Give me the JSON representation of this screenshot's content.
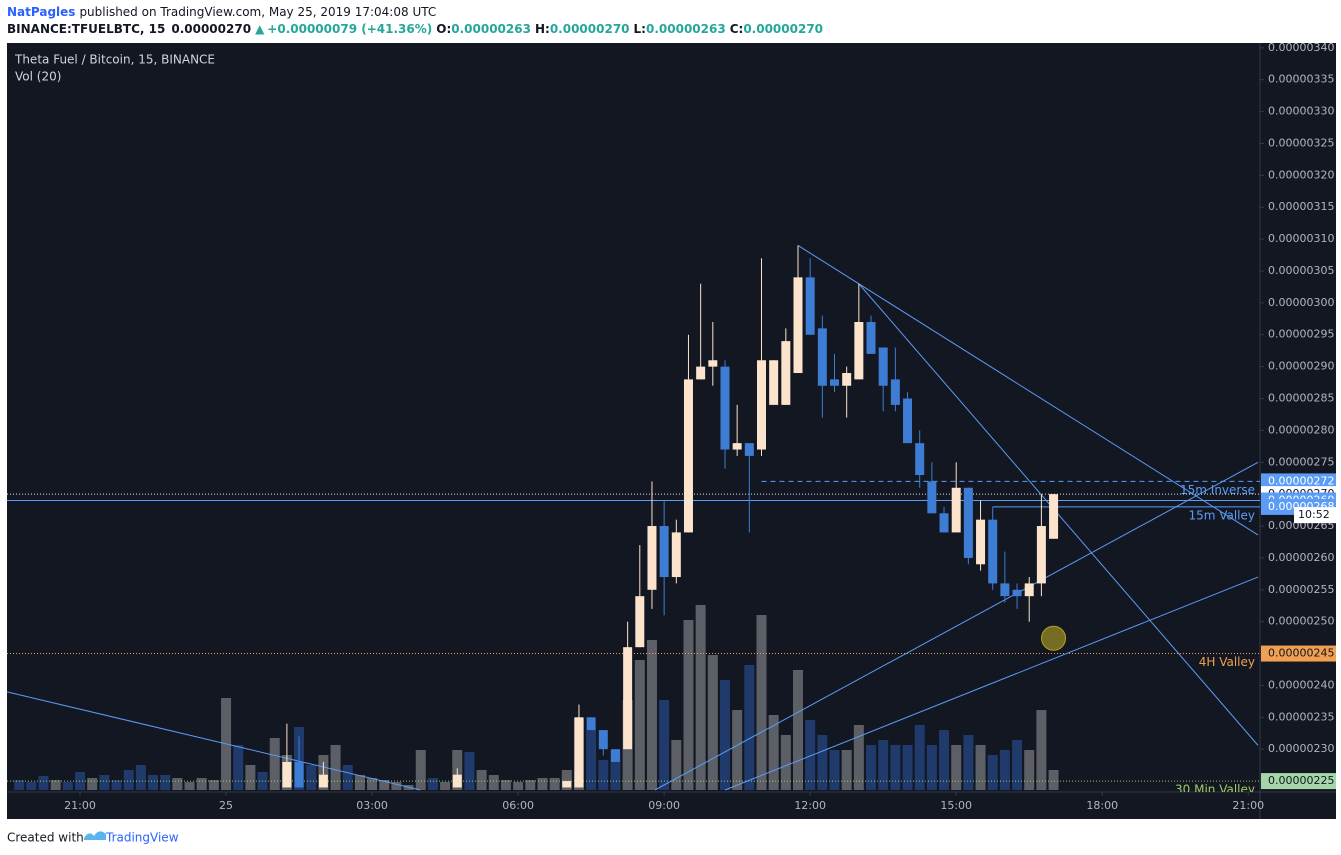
{
  "header": {
    "author": "NatPagles",
    "published": "published on TradingView.com, May 25, 2019 17:04:08 UTC",
    "symbol": "BINANCE:TFUELBTC, 15",
    "price": "0.00000270",
    "arrow": "▲",
    "change": "+0.00000079 (+41.36%)",
    "ohlc": [
      {
        "k": "O:",
        "v": "0.00000263"
      },
      {
        "k": "H:",
        "v": "0.00000270"
      },
      {
        "k": "L:",
        "v": "0.00000263"
      },
      {
        "k": "C:",
        "v": "0.00000270"
      }
    ]
  },
  "footer": {
    "created": "Created with",
    "brand": "TradingView"
  },
  "chart_data": {
    "type": "candlestick",
    "title": "Theta Fuel / Bitcoin, 15, BINANCE",
    "volume_label": "Vol (20)",
    "xlim": [
      -4.5,
      21.2
    ],
    "xticks": [
      {
        "value": -3,
        "label": "21:00"
      },
      {
        "value": 0,
        "label": "25"
      },
      {
        "value": 3,
        "label": "03:00"
      },
      {
        "value": 6,
        "label": "06:00"
      },
      {
        "value": 9,
        "label": "09:00"
      },
      {
        "value": 12,
        "label": "12:00"
      },
      {
        "value": 15,
        "label": "15:00"
      },
      {
        "value": 18,
        "label": "18:00"
      },
      {
        "value": 21,
        "label": "21:00"
      }
    ],
    "ylim": [
      2.236e-06,
      3.406e-06
    ],
    "yticks": [
      {
        "value": 2.3e-06,
        "label": "0.00000230"
      },
      {
        "value": 2.35e-06,
        "label": "0.00000235"
      },
      {
        "value": 2.4e-06,
        "label": "0.00000240"
      },
      {
        "value": 2.45e-06,
        "label": "0.00000245"
      },
      {
        "value": 2.5e-06,
        "label": "0.00000250"
      },
      {
        "value": 2.55e-06,
        "label": "0.00000255"
      },
      {
        "value": 2.6e-06,
        "label": "0.00000260"
      },
      {
        "value": 2.65e-06,
        "label": "0.00000265"
      },
      {
        "value": 2.7e-06,
        "label": "0.00000270"
      },
      {
        "value": 2.75e-06,
        "label": "0.00000275"
      },
      {
        "value": 2.8e-06,
        "label": "0.00000280"
      },
      {
        "value": 2.85e-06,
        "label": "0.00000285"
      },
      {
        "value": 2.9e-06,
        "label": "0.00000290"
      },
      {
        "value": 2.95e-06,
        "label": "0.00000295"
      },
      {
        "value": 3e-06,
        "label": "0.00000300"
      },
      {
        "value": 3.05e-06,
        "label": "0.00000305"
      },
      {
        "value": 3.1e-06,
        "label": "0.00000310"
      },
      {
        "value": 3.15e-06,
        "label": "0.00000315"
      },
      {
        "value": 3.2e-06,
        "label": "0.00000320"
      },
      {
        "value": 3.25e-06,
        "label": "0.00000325"
      },
      {
        "value": 3.3e-06,
        "label": "0.00000330"
      },
      {
        "value": 3.35e-06,
        "label": "0.00000335"
      },
      {
        "value": 3.4e-06,
        "label": "0.00000340"
      }
    ],
    "vlim": [
      0,
      200
    ],
    "up_color": "#fbe3cc",
    "down_color": "#3d7dd4",
    "up_volume_color": "#5d5f66",
    "down_volume_color": "#1f3a6b",
    "x": [
      1.25,
      1.5,
      2.0,
      4.75,
      7.0,
      7.25,
      7.5,
      7.75,
      8.0,
      8.25,
      8.5,
      8.75,
      9.0,
      9.25,
      9.5,
      9.75,
      10.0,
      10.25,
      10.5,
      10.75,
      11.0,
      11.25,
      11.5,
      11.75,
      12.0,
      12.25,
      12.5,
      12.75,
      13.0,
      13.25,
      13.5,
      13.75,
      14.0,
      14.25,
      14.5,
      14.75,
      15.0,
      15.25,
      15.5,
      15.75,
      16.0,
      16.25,
      16.5,
      16.75,
      17.0
    ],
    "open": [
      2.24e-06,
      2.28e-06,
      2.24e-06,
      2.24e-06,
      2.24e-06,
      2.24e-06,
      2.35e-06,
      2.33e-06,
      2.3e-06,
      2.3e-06,
      2.46e-06,
      2.55e-06,
      2.65e-06,
      2.57e-06,
      2.64e-06,
      2.88e-06,
      2.9e-06,
      2.9e-06,
      2.77e-06,
      2.78e-06,
      2.77e-06,
      2.84e-06,
      2.84e-06,
      2.89e-06,
      3.04e-06,
      2.96e-06,
      2.88e-06,
      2.87e-06,
      2.88e-06,
      2.97e-06,
      2.93e-06,
      2.88e-06,
      2.85e-06,
      2.78e-06,
      2.72e-06,
      2.67e-06,
      2.64e-06,
      2.71e-06,
      2.59e-06,
      2.66e-06,
      2.56e-06,
      2.55e-06,
      2.54e-06,
      2.56e-06,
      2.63e-06
    ],
    "high": [
      2.34e-06,
      2.32e-06,
      2.28e-06,
      2.27e-06,
      2.25e-06,
      2.37e-06,
      2.35e-06,
      2.33e-06,
      2.3e-06,
      2.5e-06,
      2.62e-06,
      2.72e-06,
      2.69e-06,
      2.66e-06,
      2.95e-06,
      3.03e-06,
      2.97e-06,
      2.91e-06,
      2.84e-06,
      2.78e-06,
      3.07e-06,
      2.91e-06,
      2.96e-06,
      3.09e-06,
      3.07e-06,
      2.98e-06,
      2.92e-06,
      2.9e-06,
      3.03e-06,
      2.98e-06,
      2.93e-06,
      2.93e-06,
      2.86e-06,
      2.8e-06,
      2.75e-06,
      2.68e-06,
      2.75e-06,
      2.71e-06,
      2.69e-06,
      2.68e-06,
      2.61e-06,
      2.56e-06,
      2.57e-06,
      2.7e-06,
      2.7e-06
    ],
    "low": [
      2.24e-06,
      2.24e-06,
      2.24e-06,
      2.24e-06,
      2.24e-06,
      2.24e-06,
      2.33e-06,
      2.29e-06,
      2.28e-06,
      2.3e-06,
      2.46e-06,
      2.52e-06,
      2.51e-06,
      2.56e-06,
      2.64e-06,
      2.88e-06,
      2.87e-06,
      2.74e-06,
      2.76e-06,
      2.64e-06,
      2.76e-06,
      2.84e-06,
      2.84e-06,
      2.89e-06,
      2.95e-06,
      2.82e-06,
      2.86e-06,
      2.82e-06,
      2.88e-06,
      2.92e-06,
      2.83e-06,
      2.83e-06,
      2.78e-06,
      2.71e-06,
      2.67e-06,
      2.64e-06,
      2.64e-06,
      2.59e-06,
      2.58e-06,
      2.55e-06,
      2.53e-06,
      2.52e-06,
      2.5e-06,
      2.54e-06,
      2.63e-06
    ],
    "close": [
      2.28e-06,
      2.24e-06,
      2.26e-06,
      2.26e-06,
      2.25e-06,
      2.35e-06,
      2.33e-06,
      2.3e-06,
      2.28e-06,
      2.46e-06,
      2.54e-06,
      2.65e-06,
      2.57e-06,
      2.64e-06,
      2.88e-06,
      2.9e-06,
      2.91e-06,
      2.77e-06,
      2.78e-06,
      2.76e-06,
      2.91e-06,
      2.91e-06,
      2.94e-06,
      3.04e-06,
      2.95e-06,
      2.87e-06,
      2.87e-06,
      2.89e-06,
      2.97e-06,
      2.92e-06,
      2.87e-06,
      2.84e-06,
      2.78e-06,
      2.73e-06,
      2.67e-06,
      2.64e-06,
      2.71e-06,
      2.6e-06,
      2.66e-06,
      2.56e-06,
      2.54e-06,
      2.54e-06,
      2.56e-06,
      2.65e-06,
      2.7e-06
    ],
    "volume": [
      35,
      63,
      35,
      40,
      20,
      72,
      60,
      30,
      40,
      90,
      130,
      150,
      90,
      50,
      170,
      185,
      135,
      110,
      80,
      125,
      175,
      75,
      55,
      120,
      70,
      55,
      40,
      40,
      65,
      45,
      50,
      45,
      45,
      65,
      45,
      60,
      45,
      55,
      45,
      35,
      40,
      50,
      40,
      80,
      20
    ],
    "early_volume": {
      "x": [
        -4.25,
        -4,
        -3.75,
        -3.5,
        -3.25,
        -3,
        -2.75,
        -2.5,
        -2.25,
        -2,
        -1.75,
        -1.5,
        -1.25,
        -1,
        -0.75,
        -0.5,
        -0.25,
        0,
        0.25,
        0.5,
        0.75,
        1,
        1.75,
        2.25,
        2.5,
        2.75,
        3,
        3.25,
        3.5,
        3.75,
        4,
        4.25,
        4.5,
        5,
        5.25,
        5.5,
        5.75,
        6,
        6.25,
        6.5,
        6.75
      ],
      "values": [
        10,
        8,
        14,
        10,
        8,
        18,
        12,
        15,
        10,
        20,
        25,
        15,
        15,
        12,
        8,
        12,
        10,
        92,
        45,
        25,
        18,
        52,
        25,
        45,
        25,
        15,
        12,
        10,
        8,
        5,
        40,
        12,
        8,
        38,
        20,
        15,
        10,
        8,
        10,
        12,
        12
      ],
      "colors": [
        "#1f3a6b",
        "#1f3a6b",
        "#1f3a6b",
        "#5d5f66",
        "#1f3a6b",
        "#1f3a6b",
        "#5d5f66",
        "#1f3a6b",
        "#1f3a6b",
        "#1f3a6b",
        "#1f3a6b",
        "#1f3a6b",
        "#1f3a6b",
        "#5d5f66",
        "#5d5f66",
        "#5d5f66",
        "#5d5f66",
        "#5d5f66",
        "#1f3a6b",
        "#5d5f66",
        "#1f3a6b",
        "#5d5f66",
        "#1f3a6b",
        "#5d5f66",
        "#1f3a6b",
        "#5d5f66",
        "#5d5f66",
        "#5d5f66",
        "#5d5f66",
        "#5d5f66",
        "#5d5f66",
        "#1f3a6b",
        "#5d5f66",
        "#1f3a6b",
        "#5d5f66",
        "#5d5f66",
        "#5d5f66",
        "#5d5f66",
        "#5d5f66",
        "#5d5f66",
        "#5d5f66"
      ]
    },
    "levels": [
      {
        "value": 2.72e-06,
        "label": "0.00000272",
        "name": "15m Inverse",
        "color": "#5b9cf6",
        "style": "dashed",
        "start": 11.0,
        "box_color": "#5b9cf6",
        "text_color": "#ffffff"
      },
      {
        "value": 2.7e-06,
        "label": "0.00000270",
        "color": "#e0e3eb",
        "style": "dotted",
        "box_color": "#ffffff",
        "text_color": "#131722"
      },
      {
        "value": 2.69e-06,
        "label": "0.00000269",
        "color": "#5b9cf6",
        "style": "solid",
        "box_color": "#5b9cf6",
        "text_color": "#ffffff"
      },
      {
        "value": 2.68e-06,
        "label": "0.00000268",
        "name": "15m Valley",
        "color": "#5b9cf6",
        "style": "solid",
        "start": 15.75,
        "box_color": "#5b9cf6",
        "text_color": "#ffffff"
      },
      {
        "value": 2.45e-06,
        "label": "0.00000245",
        "name": "4H Valley",
        "color": "#f0a050",
        "style": "dotted",
        "box_color": "#f0a050",
        "text_color": "#131722"
      },
      {
        "value": 2.25e-06,
        "label": "0.00000225",
        "name": "30 Min Valley",
        "color": "#9ccc65",
        "style": "dotted",
        "box_color": "#a5d6a7",
        "text_color": "#131722"
      }
    ],
    "countdown": "10:52",
    "trendlines": [
      {
        "x": [
          11.75,
          21.2
        ],
        "y": [
          3.09e-06,
          2.636e-06
        ]
      },
      {
        "x": [
          13.0,
          21.2
        ],
        "y": [
          3.03e-06,
          2.306e-06
        ]
      },
      {
        "x": [
          -4.5,
          3.99
        ],
        "y": [
          2.39e-06,
          2.236e-06
        ]
      },
      {
        "x": [
          8.81,
          21.2
        ],
        "y": [
          2.236e-06,
          2.75e-06
        ]
      },
      {
        "x": [
          10.25,
          21.2
        ],
        "y": [
          2.236e-06,
          2.57e-06
        ]
      }
    ],
    "trendline_color": "#5b9cf6",
    "circle": {
      "x": 17.0,
      "y": 2.474e-06
    }
  }
}
